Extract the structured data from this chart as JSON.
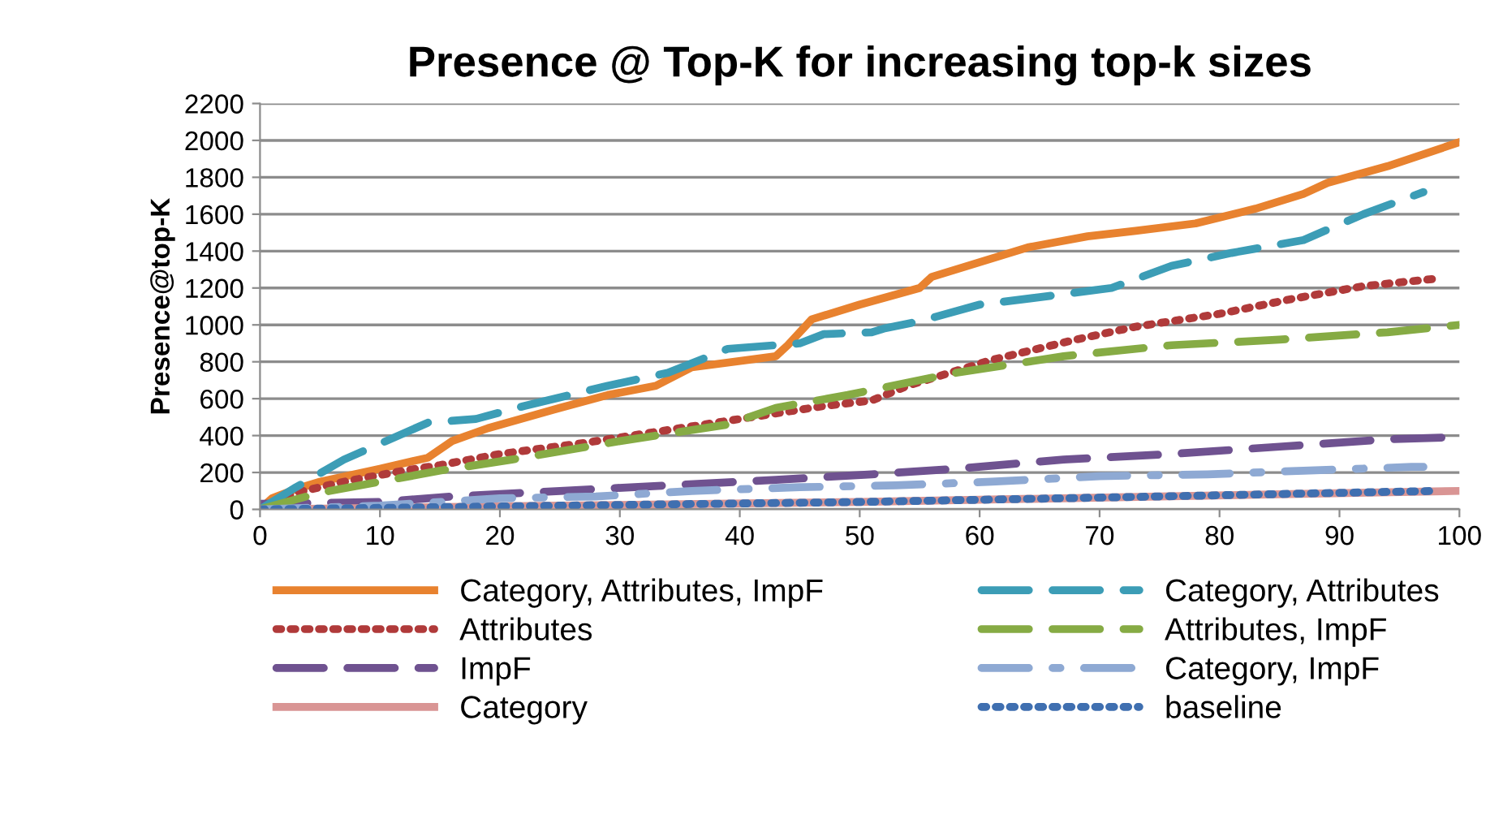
{
  "chart_data": {
    "type": "line",
    "title": "Presence @ Top-K for increasing top-k sizes",
    "ylabel": "Presence@top-K",
    "xlim": [
      0,
      100
    ],
    "xticks": [
      0,
      10,
      20,
      30,
      40,
      50,
      60,
      70,
      80,
      90,
      100
    ],
    "ylim": [
      0,
      2200
    ],
    "yticks": [
      0,
      200,
      400,
      600,
      800,
      1000,
      1200,
      1400,
      1600,
      1800,
      2000,
      2200
    ],
    "grid": "y",
    "legend": "bottom",
    "marker": "none",
    "series": [
      {
        "name": "Category, Attributes, ImpF",
        "color": "#e8822f",
        "line_style": "solid",
        "x": [
          0,
          1,
          3,
          5,
          10,
          14,
          16,
          19,
          25,
          29,
          33,
          36,
          43,
          44,
          46,
          50,
          55,
          56,
          64,
          69,
          73,
          78,
          83,
          87,
          89,
          94,
          100
        ],
        "values": [
          0,
          60,
          110,
          150,
          220,
          280,
          370,
          440,
          550,
          620,
          670,
          770,
          830,
          890,
          1030,
          1110,
          1200,
          1260,
          1420,
          1480,
          1510,
          1550,
          1630,
          1710,
          1770,
          1860,
          1990
        ]
      },
      {
        "name": "Attributes",
        "color": "#b03a3a",
        "line_style": "dotted",
        "x": [
          0,
          3,
          7,
          12,
          15,
          20,
          27,
          34,
          41,
          47,
          51,
          54,
          61,
          68,
          73,
          80,
          86,
          92,
          98
        ],
        "values": [
          0,
          90,
          150,
          210,
          240,
          300,
          360,
          430,
          500,
          560,
          590,
          670,
          810,
          920,
          990,
          1060,
          1140,
          1210,
          1250
        ]
      },
      {
        "name": "ImpF",
        "color": "#6f5290",
        "line_style": "dashed",
        "x": [
          0,
          10,
          16,
          25,
          34,
          43,
          51,
          58,
          67,
          76,
          85,
          94,
          99
        ],
        "values": [
          30,
          40,
          70,
          100,
          130,
          160,
          190,
          220,
          270,
          300,
          340,
          380,
          390
        ]
      },
      {
        "name": "Category",
        "color": "#d99594",
        "line_style": "solid",
        "x": [
          0,
          25,
          50,
          75,
          100
        ],
        "values": [
          0,
          20,
          40,
          70,
          100
        ]
      },
      {
        "name": "Category, Attributes",
        "color": "#3c9db6",
        "line_style": "dashed",
        "x": [
          0,
          3,
          7,
          14,
          18,
          22,
          29,
          34,
          39,
          45,
          47,
          51,
          52,
          55,
          60,
          65,
          71,
          76,
          81,
          87,
          92,
          97
        ],
        "values": [
          0,
          120,
          270,
          470,
          490,
          560,
          670,
          740,
          870,
          900,
          950,
          960,
          980,
          1020,
          1110,
          1150,
          1200,
          1320,
          1390,
          1460,
          1600,
          1720
        ]
      },
      {
        "name": "Attributes, ImpF",
        "color": "#86ab44",
        "line_style": "dashed",
        "x": [
          0,
          5,
          10,
          15,
          21,
          30,
          39,
          43,
          49,
          58,
          67,
          76,
          85,
          94,
          100
        ],
        "values": [
          0,
          90,
          150,
          210,
          270,
          370,
          460,
          550,
          620,
          740,
          830,
          890,
          920,
          960,
          1000
        ]
      },
      {
        "name": "Category, ImpF",
        "color": "#8ea9d3",
        "line_style": "dashdot",
        "x": [
          0,
          10,
          20,
          28,
          36,
          45,
          53,
          61,
          70,
          79,
          87,
          96,
          97
        ],
        "values": [
          0,
          20,
          60,
          70,
          100,
          120,
          130,
          150,
          180,
          190,
          210,
          230,
          230
        ]
      },
      {
        "name": "baseline",
        "color": "#3f6fb0",
        "line_style": "dotted",
        "x": [
          0,
          25,
          50,
          75,
          98
        ],
        "values": [
          0,
          20,
          40,
          70,
          100
        ]
      }
    ]
  }
}
